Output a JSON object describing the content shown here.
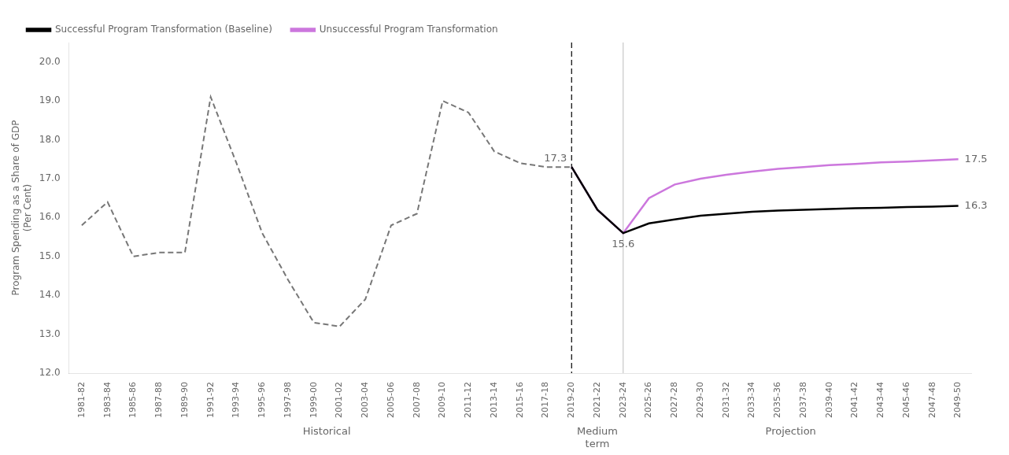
{
  "chart_data": {
    "type": "line",
    "categories": [
      "1981-82",
      "1983-84",
      "1985-86",
      "1987-88",
      "1989-90",
      "1991-92",
      "1993-94",
      "1995-96",
      "1997-98",
      "1999-00",
      "2001-02",
      "2003-04",
      "2005-06",
      "2007-08",
      "2009-10",
      "2011-12",
      "2013-14",
      "2015-16",
      "2017-18",
      "2019-20",
      "2021-22",
      "2023-24",
      "2025-26",
      "2027-28",
      "2029-30",
      "2031-32",
      "2033-34",
      "2035-36",
      "2037-38",
      "2039-40",
      "2041-42",
      "2043-44",
      "2045-46",
      "2047-48",
      "2049-50"
    ],
    "series": [
      {
        "color": "#777777",
        "line_style": "dashed",
        "values": [
          15.8,
          16.4,
          15.0,
          15.1,
          15.1,
          19.1,
          17.4,
          15.6,
          14.4,
          13.3,
          13.2,
          13.9,
          15.8,
          16.1,
          19.0,
          18.7,
          17.7,
          17.4,
          17.3,
          17.3,
          null,
          null,
          null,
          null,
          null,
          null,
          null,
          null,
          null,
          null,
          null,
          null,
          null,
          null,
          null
        ]
      },
      {
        "name": "Successful Program Transformation (Baseline)",
        "color": "#000000",
        "line_style": "solid",
        "values": [
          null,
          null,
          null,
          null,
          null,
          null,
          null,
          null,
          null,
          null,
          null,
          null,
          null,
          null,
          null,
          null,
          null,
          null,
          null,
          17.3,
          16.2,
          15.6,
          15.85,
          15.95,
          16.05,
          16.1,
          16.15,
          16.18,
          16.2,
          16.22,
          16.24,
          16.25,
          16.27,
          16.28,
          16.3
        ]
      },
      {
        "name": "Unsuccessful Program Transformation",
        "color": "#cc77dd",
        "line_style": "solid",
        "values": [
          null,
          null,
          null,
          null,
          null,
          null,
          null,
          null,
          null,
          null,
          null,
          null,
          null,
          null,
          null,
          null,
          null,
          null,
          null,
          17.3,
          16.2,
          15.6,
          16.5,
          16.85,
          17.0,
          17.1,
          17.18,
          17.25,
          17.3,
          17.35,
          17.38,
          17.42,
          17.44,
          17.47,
          17.5
        ]
      }
    ],
    "ylabel": "Program Spending as a Share of GDP\n(Per Cent)",
    "ylim": [
      12.0,
      20.5
    ],
    "yticks": [
      {
        "value": 12,
        "label": "12.0"
      },
      {
        "value": 13,
        "label": "13.0"
      },
      {
        "value": 14,
        "label": "14.0"
      },
      {
        "value": 15,
        "label": "15.0"
      },
      {
        "value": 16,
        "label": "16.0"
      },
      {
        "value": 17,
        "label": "17.0"
      },
      {
        "value": 18,
        "label": "18.0"
      },
      {
        "value": 19,
        "label": "19.0"
      },
      {
        "value": 20,
        "label": "20.0"
      }
    ],
    "grid": false,
    "legend": "upper left",
    "annotations": [
      {
        "text": "17.3",
        "category": "2019-20",
        "value": 17.3
      },
      {
        "text": "15.6",
        "category": "2023-24",
        "value": 15.6
      },
      {
        "text": "16.3",
        "category": "2049-50",
        "value": 16.3
      },
      {
        "text": "17.5",
        "category": "2049-50",
        "value": 17.5
      }
    ],
    "sections": [
      {
        "label": "Historical",
        "from": "1981-82",
        "to": "2019-20"
      },
      {
        "label": "Medium\nterm",
        "from": "2019-20",
        "to": "2023-24"
      },
      {
        "label": "Projection",
        "from": "2023-24",
        "to": "2049-50"
      }
    ],
    "vlines": [
      {
        "category": "2019-20",
        "color": "#000000",
        "line_style": "dashed"
      },
      {
        "category": "2023-24",
        "color": "#aaaaaa",
        "line_style": "solid"
      }
    ]
  }
}
